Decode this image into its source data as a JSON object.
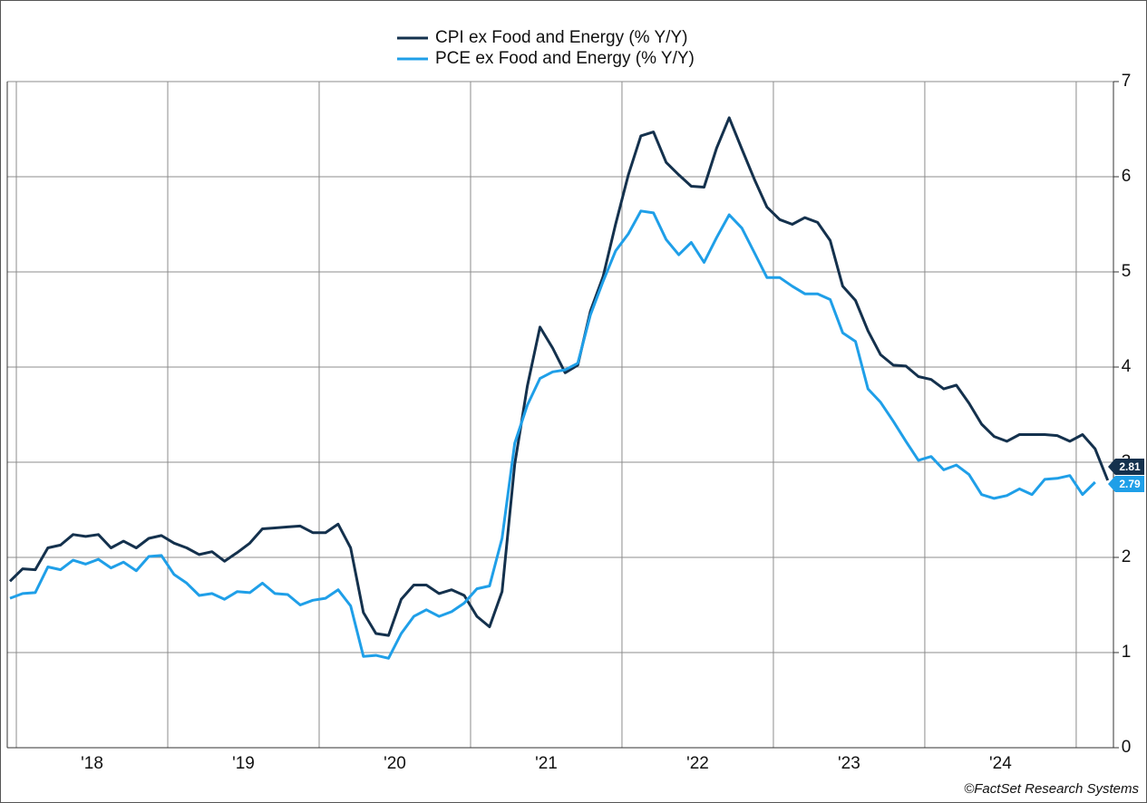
{
  "chart_data": {
    "type": "line",
    "series": [
      {
        "name": "CPI ex Food and Energy (% Y/Y)",
        "color": "#14314d",
        "values": [
          1.75,
          1.88,
          1.87,
          2.1,
          2.13,
          2.24,
          2.22,
          2.24,
          2.1,
          2.17,
          2.1,
          2.2,
          2.23,
          2.15,
          2.1,
          2.03,
          2.06,
          1.96,
          2.05,
          2.15,
          2.3,
          2.31,
          2.32,
          2.33,
          2.26,
          2.26,
          2.35,
          2.1,
          1.42,
          1.2,
          1.18,
          1.56,
          1.71,
          1.71,
          1.62,
          1.66,
          1.6,
          1.38,
          1.27,
          1.64,
          2.98,
          3.8,
          4.42,
          4.2,
          3.94,
          4.02,
          4.59,
          4.95,
          5.5,
          6.02,
          6.43,
          6.47,
          6.15,
          6.02,
          5.9,
          5.89,
          6.3,
          6.62,
          6.29,
          5.97,
          5.68,
          5.55,
          5.5,
          5.57,
          5.52,
          5.33,
          4.85,
          4.7,
          4.38,
          4.13,
          4.02,
          4.01,
          3.9,
          3.87,
          3.77,
          3.81,
          3.62,
          3.4,
          3.27,
          3.22,
          3.29,
          3.29,
          3.29,
          3.28,
          3.22,
          3.29,
          3.14,
          2.81
        ]
      },
      {
        "name": "PCE ex Food and Energy (% Y/Y)",
        "color": "#1f9fe8",
        "values": [
          1.57,
          1.62,
          1.63,
          1.9,
          1.87,
          1.97,
          1.93,
          1.98,
          1.89,
          1.95,
          1.86,
          2.01,
          2.02,
          1.82,
          1.73,
          1.6,
          1.62,
          1.56,
          1.64,
          1.63,
          1.73,
          1.62,
          1.61,
          1.5,
          1.55,
          1.57,
          1.66,
          1.49,
          0.96,
          0.97,
          0.94,
          1.2,
          1.38,
          1.45,
          1.38,
          1.43,
          1.52,
          1.67,
          1.7,
          2.2,
          3.2,
          3.6,
          3.88,
          3.95,
          3.97,
          4.04,
          4.55,
          4.9,
          5.22,
          5.4,
          5.64,
          5.62,
          5.34,
          5.18,
          5.31,
          5.1,
          5.36,
          5.6,
          5.46,
          5.2,
          4.94,
          4.94,
          4.85,
          4.77,
          4.77,
          4.71,
          4.36,
          4.27,
          3.77,
          3.63,
          3.43,
          3.22,
          3.02,
          3.06,
          2.92,
          2.97,
          2.87,
          2.66,
          2.62,
          2.65,
          2.72,
          2.66,
          2.82,
          2.83,
          2.86,
          2.66,
          2.79,
          null
        ]
      }
    ],
    "x": [
      2017.958,
      2018.042,
      2018.125,
      2018.208,
      2018.292,
      2018.375,
      2018.458,
      2018.542,
      2018.625,
      2018.708,
      2018.792,
      2018.875,
      2018.958,
      2019.042,
      2019.125,
      2019.208,
      2019.292,
      2019.375,
      2019.458,
      2019.542,
      2019.625,
      2019.708,
      2019.792,
      2019.875,
      2019.958,
      2020.042,
      2020.125,
      2020.208,
      2020.292,
      2020.375,
      2020.458,
      2020.542,
      2020.625,
      2020.708,
      2020.792,
      2020.875,
      2020.958,
      2021.042,
      2021.125,
      2021.208,
      2021.292,
      2021.375,
      2021.458,
      2021.542,
      2021.625,
      2021.708,
      2021.792,
      2021.875,
      2021.958,
      2022.042,
      2022.125,
      2022.208,
      2022.292,
      2022.375,
      2022.458,
      2022.542,
      2022.625,
      2022.708,
      2022.792,
      2022.875,
      2022.958,
      2023.042,
      2023.125,
      2023.208,
      2023.292,
      2023.375,
      2023.458,
      2023.542,
      2023.625,
      2023.708,
      2023.792,
      2023.875,
      2023.958,
      2024.042,
      2024.125,
      2024.208,
      2024.292,
      2024.375,
      2024.458,
      2024.542,
      2024.625,
      2024.708,
      2024.792,
      2024.875,
      2024.958,
      2025.042,
      2025.125,
      2025.208
    ],
    "xlim": [
      2017.94,
      2025.246
    ],
    "xticks": [
      {
        "value": 2018.5,
        "label": "'18"
      },
      {
        "value": 2019.5,
        "label": "'19"
      },
      {
        "value": 2020.5,
        "label": "'20"
      },
      {
        "value": 2021.5,
        "label": "'21"
      },
      {
        "value": 2022.5,
        "label": "'22"
      },
      {
        "value": 2023.5,
        "label": "'23"
      },
      {
        "value": 2024.5,
        "label": "'24"
      }
    ],
    "xgrid": [
      2018,
      2019,
      2020,
      2021,
      2022,
      2023,
      2024,
      2025
    ],
    "ylim": [
      0,
      7
    ],
    "yticks": [
      0,
      1,
      2,
      3,
      4,
      5,
      6,
      7
    ],
    "grid": true,
    "legend": "top",
    "source": "©FactSet Research Systems"
  }
}
